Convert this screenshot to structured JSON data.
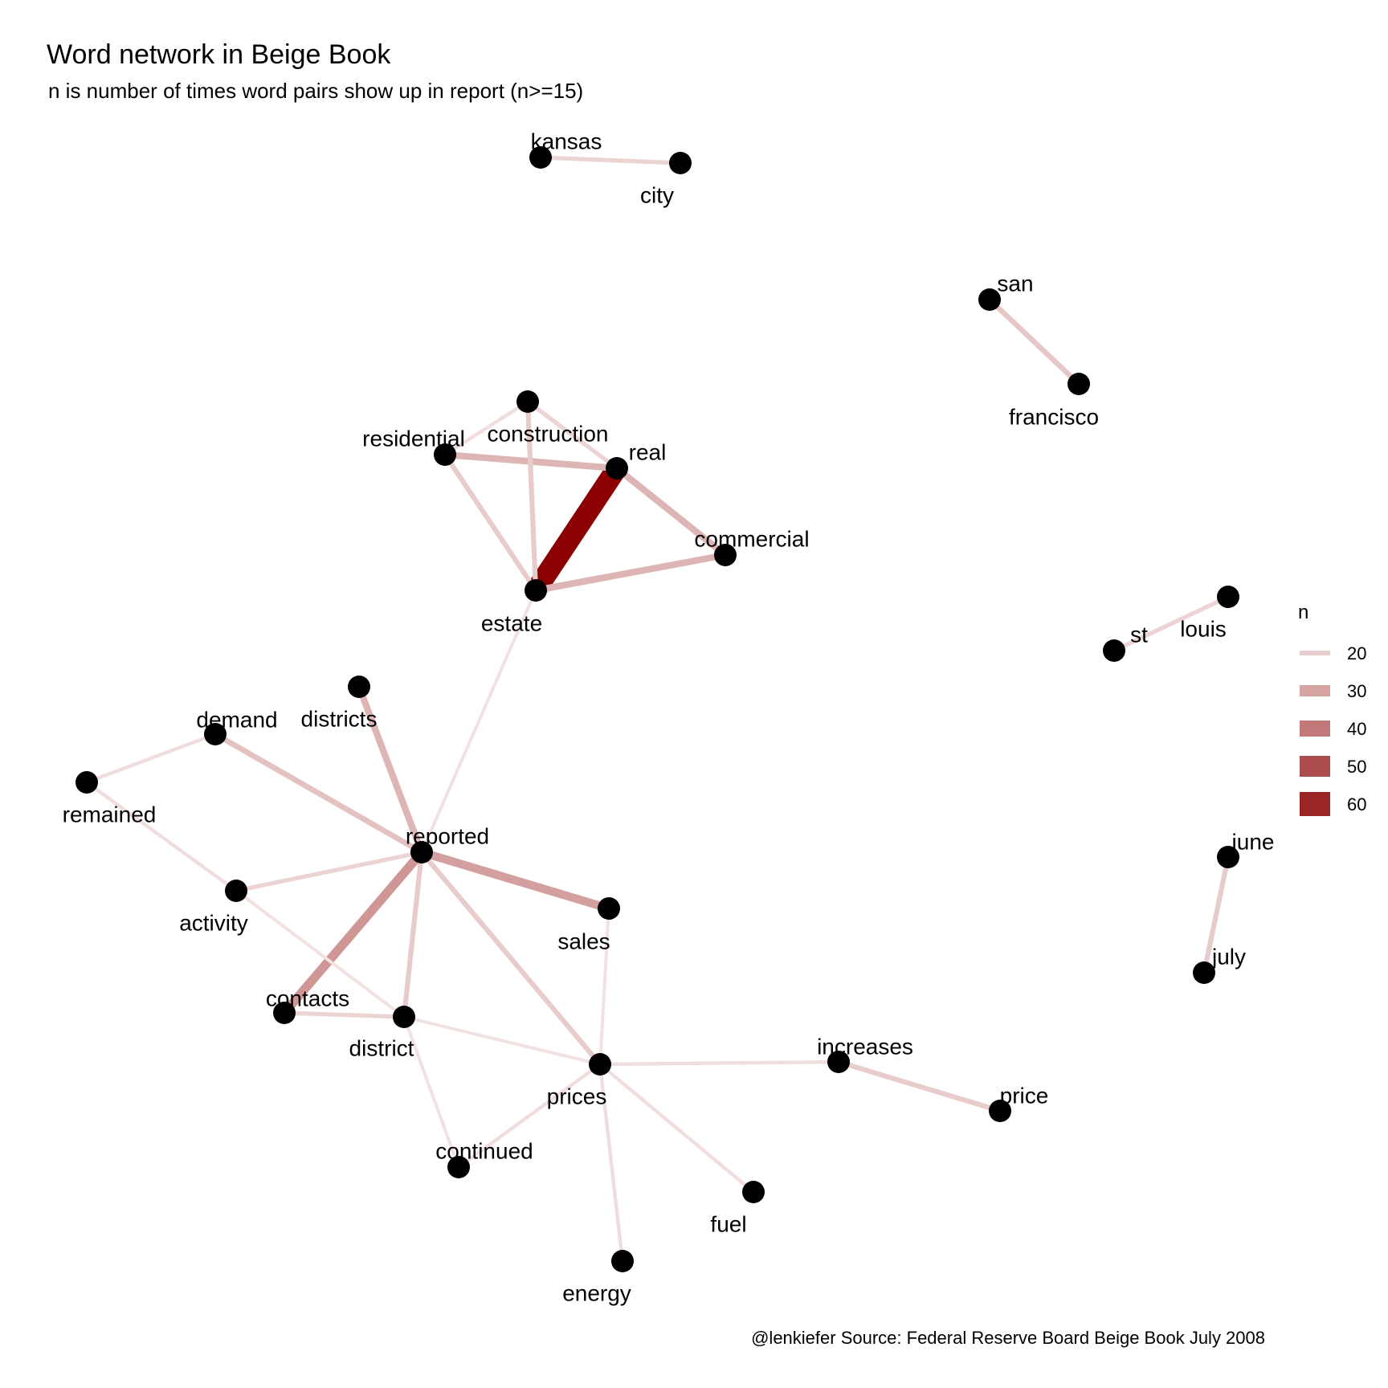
{
  "chart_data": {
    "type": "network",
    "title": "Word network in Beige Book",
    "subtitle": "n is number of times word pairs show up in report (n>=15)",
    "caption": "@lenkiefer Source: Federal Reserve Board Beige Book July 2008",
    "legend": {
      "title": "n",
      "placement": "right",
      "entries": [
        {
          "label": "20",
          "value": 20,
          "color": "#e8cfcf"
        },
        {
          "label": "30",
          "value": 30,
          "color": "#d6a3a3"
        },
        {
          "label": "40",
          "value": 40,
          "color": "#c27878"
        },
        {
          "label": "50",
          "value": 50,
          "color": "#ac4c4c"
        },
        {
          "label": "60",
          "value": 60,
          "color": "#9b2424"
        }
      ]
    },
    "scale": {
      "min_n": 15,
      "max_n": 66,
      "low_color": "#f2e1e1",
      "high_color": "#8b0000"
    },
    "nodes": [
      "kansas",
      "city",
      "san",
      "francisco",
      "construction",
      "residential",
      "real",
      "commercial",
      "estate",
      "louis",
      "st",
      "demand",
      "districts",
      "remained",
      "reported",
      "june",
      "activity",
      "sales",
      "july",
      "contacts",
      "district",
      "increases",
      "prices",
      "price",
      "continued",
      "fuel",
      "energy"
    ],
    "edges": [
      {
        "from": "kansas",
        "to": "city",
        "n": 18
      },
      {
        "from": "san",
        "to": "francisco",
        "n": 21
      },
      {
        "from": "real",
        "to": "estate",
        "n": 66
      },
      {
        "from": "residential",
        "to": "real",
        "n": 25
      },
      {
        "from": "residential",
        "to": "construction",
        "n": 16
      },
      {
        "from": "construction",
        "to": "real",
        "n": 18
      },
      {
        "from": "construction",
        "to": "estate",
        "n": 20
      },
      {
        "from": "residential",
        "to": "estate",
        "n": 20
      },
      {
        "from": "real",
        "to": "commercial",
        "n": 25
      },
      {
        "from": "estate",
        "to": "commercial",
        "n": 25
      },
      {
        "from": "estate",
        "to": "reported",
        "n": 15
      },
      {
        "from": "st",
        "to": "louis",
        "n": 18
      },
      {
        "from": "june",
        "to": "july",
        "n": 20
      },
      {
        "from": "demand",
        "to": "remained",
        "n": 16
      },
      {
        "from": "demand",
        "to": "reported",
        "n": 22
      },
      {
        "from": "districts",
        "to": "reported",
        "n": 25
      },
      {
        "from": "remained",
        "to": "activity",
        "n": 16
      },
      {
        "from": "activity",
        "to": "reported",
        "n": 18
      },
      {
        "from": "reported",
        "to": "sales",
        "n": 30
      },
      {
        "from": "reported",
        "to": "contacts",
        "n": 32
      },
      {
        "from": "reported",
        "to": "district",
        "n": 20
      },
      {
        "from": "reported",
        "to": "prices",
        "n": 20
      },
      {
        "from": "activity",
        "to": "district",
        "n": 15
      },
      {
        "from": "contacts",
        "to": "district",
        "n": 18
      },
      {
        "from": "district",
        "to": "prices",
        "n": 15
      },
      {
        "from": "district",
        "to": "continued",
        "n": 15
      },
      {
        "from": "sales",
        "to": "prices",
        "n": 15
      },
      {
        "from": "prices",
        "to": "continued",
        "n": 16
      },
      {
        "from": "prices",
        "to": "increases",
        "n": 16
      },
      {
        "from": "increases",
        "to": "price",
        "n": 20
      },
      {
        "from": "prices",
        "to": "fuel",
        "n": 16
      },
      {
        "from": "prices",
        "to": "energy",
        "n": 16
      }
    ]
  }
}
